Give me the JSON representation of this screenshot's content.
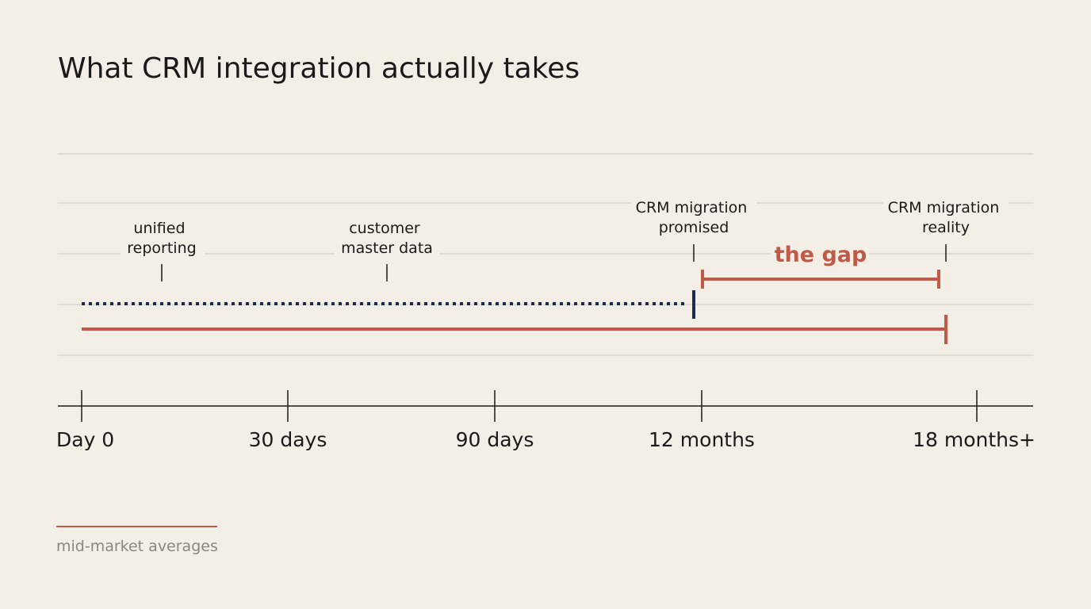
{
  "title": "What CRM integration actually takes",
  "axis": {
    "ticks": [
      "Day 0",
      "30 days",
      "90 days",
      "12 months",
      "18 months+"
    ]
  },
  "milestones": [
    {
      "lines": [
        "unified",
        "reporting"
      ]
    },
    {
      "lines": [
        "customer",
        "master data"
      ]
    },
    {
      "lines": [
        "CRM migration",
        "promised"
      ]
    },
    {
      "lines": [
        "CRM migration",
        "reality"
      ]
    }
  ],
  "gap_label": "the gap",
  "footnote": "mid-market averages",
  "colors": {
    "background": "#f4efe6",
    "promised": "#1b2a4e",
    "reality": "#bf5a48",
    "grid": "#d3cfc7",
    "axis": "#1a1a1a",
    "note": "#8b8680"
  }
}
